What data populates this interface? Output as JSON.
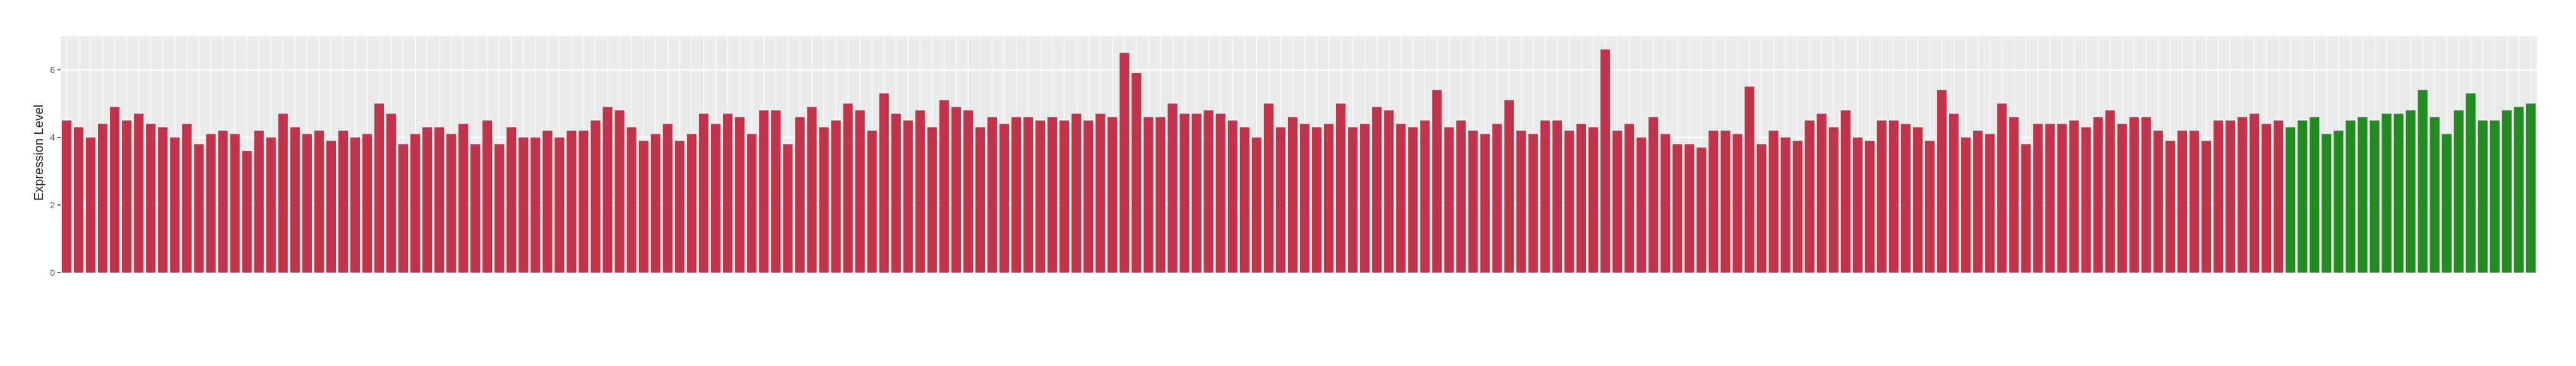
{
  "chart_data": {
    "type": "bar",
    "y_label": "Expression Level",
    "values": [
      4.5,
      4.3,
      4.0,
      4.4,
      4.9,
      4.5,
      4.7,
      4.4,
      4.3,
      4.0,
      4.4,
      3.8,
      4.1,
      4.2,
      4.1,
      3.6,
      4.2,
      4.0,
      4.7,
      4.3,
      4.1,
      4.2,
      3.9,
      4.2,
      4.0,
      4.1,
      5.0,
      4.7,
      3.8,
      4.1,
      4.3,
      4.3,
      4.1,
      4.4,
      3.8,
      4.5,
      3.8,
      4.3,
      4.0,
      4.0,
      4.2,
      4.0,
      4.2,
      4.2,
      4.5,
      4.9,
      4.8,
      4.3,
      3.9,
      4.1,
      4.4,
      3.9,
      4.1,
      4.7,
      4.4,
      4.7,
      4.6,
      4.1,
      4.8,
      4.8,
      3.8,
      4.6,
      4.9,
      4.3,
      4.5,
      5.0,
      4.8,
      4.2,
      5.3,
      4.7,
      4.5,
      4.8,
      4.3,
      5.1,
      4.9,
      4.8,
      4.3,
      4.6,
      4.4,
      4.6,
      4.6,
      4.5,
      4.6,
      4.5,
      4.7,
      4.5,
      4.7,
      4.6,
      6.5,
      5.9,
      4.6,
      4.6,
      5.0,
      4.7,
      4.7,
      4.8,
      4.7,
      4.5,
      4.3,
      4.0,
      5.0,
      4.3,
      4.6,
      4.4,
      4.3,
      4.4,
      5.0,
      4.3,
      4.4,
      4.9,
      4.8,
      4.4,
      4.3,
      4.5,
      5.4,
      4.3,
      4.5,
      4.2,
      4.1,
      4.4,
      5.1,
      4.2,
      4.1,
      4.5,
      4.5,
      4.2,
      4.4,
      4.3,
      6.6,
      4.2,
      4.4,
      4.0,
      4.6,
      4.1,
      3.8,
      3.8,
      3.7,
      4.2,
      4.2,
      4.1,
      5.5,
      3.8,
      4.2,
      4.0,
      3.9,
      4.5,
      4.7,
      4.3,
      4.8,
      4.0,
      3.9,
      4.5,
      4.5,
      4.4,
      4.3,
      3.9,
      5.4,
      4.7,
      4.0,
      4.2,
      4.1,
      5.0,
      4.6,
      3.8,
      4.4,
      4.4,
      4.4,
      4.5,
      4.3,
      4.6,
      4.8,
      4.4,
      4.6,
      4.6,
      4.2,
      3.9,
      4.2,
      4.2,
      3.9,
      4.5,
      4.5,
      4.6,
      4.7,
      4.4,
      4.5,
      4.3,
      4.5,
      4.6,
      4.1,
      4.2,
      4.5,
      4.6,
      4.5,
      4.7,
      4.7,
      4.8,
      5.4,
      4.6,
      4.1,
      4.8,
      5.3,
      4.5,
      4.5,
      4.8,
      4.9,
      5.0
    ],
    "colors": [
      "#c1344b",
      "#c1344b",
      "#c1344b",
      "#c1344b",
      "#c1344b",
      "#c1344b",
      "#c1344b",
      "#c1344b",
      "#c1344b",
      "#c1344b",
      "#c1344b",
      "#c1344b",
      "#c1344b",
      "#c1344b",
      "#c1344b",
      "#c1344b",
      "#c1344b",
      "#c1344b",
      "#c1344b",
      "#c1344b",
      "#c1344b",
      "#c1344b",
      "#c1344b",
      "#c1344b",
      "#c1344b",
      "#c1344b",
      "#c1344b",
      "#c1344b",
      "#c1344b",
      "#c1344b",
      "#c1344b",
      "#c1344b",
      "#c1344b",
      "#c1344b",
      "#c1344b",
      "#c1344b",
      "#c1344b",
      "#c1344b",
      "#c1344b",
      "#c1344b",
      "#c1344b",
      "#c1344b",
      "#c1344b",
      "#c1344b",
      "#c1344b",
      "#c1344b",
      "#c1344b",
      "#c1344b",
      "#c1344b",
      "#c1344b",
      "#c1344b",
      "#c1344b",
      "#c1344b",
      "#c1344b",
      "#c1344b",
      "#c1344b",
      "#c1344b",
      "#c1344b",
      "#c1344b",
      "#c1344b",
      "#c1344b",
      "#c1344b",
      "#c1344b",
      "#c1344b",
      "#c1344b",
      "#c1344b",
      "#c1344b",
      "#c1344b",
      "#c1344b",
      "#c1344b",
      "#c1344b",
      "#c1344b",
      "#c1344b",
      "#c1344b",
      "#c1344b",
      "#c1344b",
      "#c1344b",
      "#c1344b",
      "#c1344b",
      "#c1344b",
      "#c1344b",
      "#c1344b",
      "#c1344b",
      "#c1344b",
      "#c1344b",
      "#c1344b",
      "#c1344b",
      "#c1344b",
      "#c1344b",
      "#c1344b",
      "#c1344b",
      "#c1344b",
      "#c1344b",
      "#c1344b",
      "#c1344b",
      "#c1344b",
      "#c1344b",
      "#c1344b",
      "#c1344b",
      "#c1344b",
      "#c1344b",
      "#c1344b",
      "#c1344b",
      "#c1344b",
      "#c1344b",
      "#c1344b",
      "#c1344b",
      "#c1344b",
      "#c1344b",
      "#c1344b",
      "#c1344b",
      "#c1344b",
      "#c1344b",
      "#c1344b",
      "#c1344b",
      "#c1344b",
      "#c1344b",
      "#c1344b",
      "#c1344b",
      "#c1344b",
      "#c1344b",
      "#c1344b",
      "#c1344b",
      "#c1344b",
      "#c1344b",
      "#c1344b",
      "#c1344b",
      "#c1344b",
      "#c1344b",
      "#c1344b",
      "#c1344b",
      "#c1344b",
      "#c1344b",
      "#c1344b",
      "#c1344b",
      "#c1344b",
      "#c1344b",
      "#c1344b",
      "#c1344b",
      "#c1344b",
      "#c1344b",
      "#c1344b",
      "#c1344b",
      "#c1344b",
      "#c1344b",
      "#c1344b",
      "#c1344b",
      "#c1344b",
      "#c1344b",
      "#c1344b",
      "#c1344b",
      "#c1344b",
      "#c1344b",
      "#c1344b",
      "#c1344b",
      "#c1344b",
      "#c1344b",
      "#c1344b",
      "#c1344b",
      "#c1344b",
      "#c1344b",
      "#c1344b",
      "#c1344b",
      "#c1344b",
      "#c1344b",
      "#c1344b",
      "#c1344b",
      "#c1344b",
      "#c1344b",
      "#c1344b",
      "#c1344b",
      "#c1344b",
      "#c1344b",
      "#c1344b",
      "#c1344b",
      "#c1344b",
      "#c1344b",
      "#c1344b",
      "#c1344b",
      "#c1344b",
      "#c1344b",
      "#c1344b",
      "#c1344b",
      "#c1344b",
      "#c1344b",
      "#228b22",
      "#228b22",
      "#228b22",
      "#228b22",
      "#228b22",
      "#228b22",
      "#228b22",
      "#228b22",
      "#228b22",
      "#228b22",
      "#228b22",
      "#228b22",
      "#228b22",
      "#228b22",
      "#228b22",
      "#228b22",
      "#228b22",
      "#228b22",
      "#228b22",
      "#228b22",
      "#228b22"
    ],
    "ylim": [
      0,
      7
    ],
    "yticks": [
      0,
      2,
      4,
      6
    ],
    "grid": true
  }
}
